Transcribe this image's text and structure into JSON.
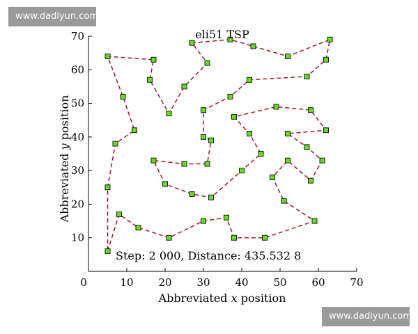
{
  "watermarks": {
    "top": "www.dadiyun.com",
    "bottom": "www.dadiyun.com"
  },
  "chart_data": {
    "type": "scatter",
    "title": "eli51 TSP",
    "xlabel_prefix": "Abbreviated ",
    "xlabel_var": "x",
    "xlabel_suffix": " position",
    "ylabel_prefix": "Abbreviated ",
    "ylabel_var": "y",
    "ylabel_suffix": " position",
    "xlim": [
      0,
      70
    ],
    "ylim": [
      0,
      70
    ],
    "xticks": [
      0,
      10,
      20,
      30,
      40,
      50,
      60,
      70
    ],
    "yticks": [
      10,
      20,
      30,
      40,
      50,
      60,
      70
    ],
    "grid": false,
    "annotation": "Step: 2 000, Distance: 435.532 8",
    "colors": {
      "route": "#a01822",
      "marker_fill": "#66dd22",
      "marker_edge": "#1a1a1a"
    },
    "route": [
      [
        5,
        6
      ],
      [
        8,
        17
      ],
      [
        13,
        13
      ],
      [
        21,
        10
      ],
      [
        30,
        15
      ],
      [
        36,
        16
      ],
      [
        38,
        10
      ],
      [
        46,
        10
      ],
      [
        59,
        15
      ],
      [
        51,
        21
      ],
      [
        48,
        28
      ],
      [
        52,
        33
      ],
      [
        58,
        27
      ],
      [
        61,
        33
      ],
      [
        57,
        37
      ],
      [
        52,
        41
      ],
      [
        62,
        42
      ],
      [
        58,
        48
      ],
      [
        49,
        49
      ],
      [
        38,
        46
      ],
      [
        42,
        41
      ],
      [
        45,
        35
      ],
      [
        40,
        30
      ],
      [
        32,
        22
      ],
      [
        27,
        23
      ],
      [
        20,
        26
      ],
      [
        17,
        33
      ],
      [
        25,
        32
      ],
      [
        31,
        32
      ],
      [
        32,
        39
      ],
      [
        30,
        40
      ],
      [
        30,
        48
      ],
      [
        37,
        52
      ],
      [
        42,
        57
      ],
      [
        57,
        58
      ],
      [
        62,
        63
      ],
      [
        63,
        69
      ],
      [
        52,
        64
      ],
      [
        43,
        67
      ],
      [
        37,
        69
      ],
      [
        27,
        68
      ],
      [
        31,
        62
      ],
      [
        25,
        55
      ],
      [
        21,
        47
      ],
      [
        16,
        57
      ],
      [
        17,
        63
      ],
      [
        5,
        64
      ],
      [
        9,
        52
      ],
      [
        12,
        42
      ],
      [
        7,
        38
      ],
      [
        5,
        25
      ]
    ]
  }
}
